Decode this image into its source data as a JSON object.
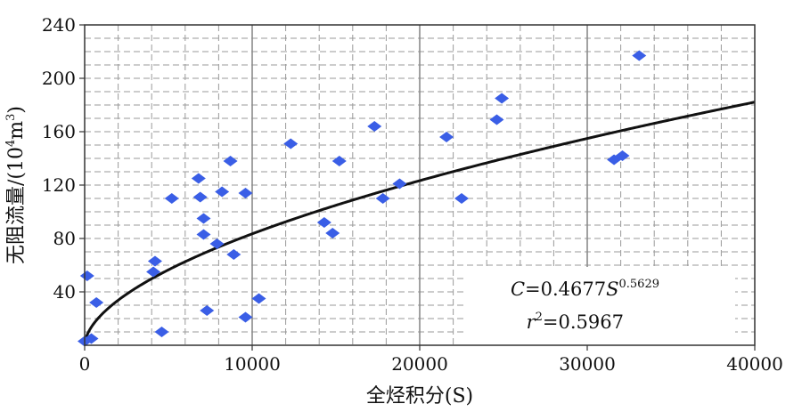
{
  "chart_data": {
    "type": "scatter",
    "xlabel": "全烃积分(S)",
    "ylabel_main": "无阻流量/(10",
    "ylabel_sup": "4",
    "ylabel_unit": "m",
    "ylabel_sup2": "3",
    "ylabel_close": ")",
    "xlim": [
      0,
      40000
    ],
    "ylim": [
      0,
      240
    ],
    "xticks": [
      0,
      10000,
      20000,
      30000,
      40000
    ],
    "yticks": [
      40,
      80,
      120,
      160,
      200,
      240
    ],
    "xtick_labels": [
      "0",
      "10000",
      "20000",
      "30000",
      "40000"
    ],
    "ytick_labels": [
      "40",
      "80",
      "120",
      "160",
      "200",
      "240"
    ],
    "grid": true,
    "marker_color": "#3a5ee6",
    "curve_color": "#111111",
    "points": [
      {
        "x": 0,
        "y": 3
      },
      {
        "x": 400,
        "y": 5
      },
      {
        "x": 150,
        "y": 52
      },
      {
        "x": 700,
        "y": 32
      },
      {
        "x": 4100,
        "y": 55
      },
      {
        "x": 4200,
        "y": 63
      },
      {
        "x": 4600,
        "y": 10
      },
      {
        "x": 5200,
        "y": 110
      },
      {
        "x": 6800,
        "y": 125
      },
      {
        "x": 6900,
        "y": 111
      },
      {
        "x": 7100,
        "y": 95
      },
      {
        "x": 7100,
        "y": 83
      },
      {
        "x": 7300,
        "y": 26
      },
      {
        "x": 7900,
        "y": 76
      },
      {
        "x": 8200,
        "y": 115
      },
      {
        "x": 8700,
        "y": 138
      },
      {
        "x": 8900,
        "y": 68
      },
      {
        "x": 9600,
        "y": 21
      },
      {
        "x": 9600,
        "y": 114
      },
      {
        "x": 10400,
        "y": 35
      },
      {
        "x": 12300,
        "y": 151
      },
      {
        "x": 14300,
        "y": 92
      },
      {
        "x": 14800,
        "y": 84
      },
      {
        "x": 15200,
        "y": 138
      },
      {
        "x": 17300,
        "y": 164
      },
      {
        "x": 17800,
        "y": 110
      },
      {
        "x": 18800,
        "y": 121
      },
      {
        "x": 21600,
        "y": 156
      },
      {
        "x": 22500,
        "y": 110
      },
      {
        "x": 24600,
        "y": 169
      },
      {
        "x": 24900,
        "y": 185
      },
      {
        "x": 31600,
        "y": 139
      },
      {
        "x": 32100,
        "y": 142
      },
      {
        "x": 33100,
        "y": 217
      }
    ],
    "fit": {
      "a": 0.4677,
      "b": 0.5629
    },
    "annotation": {
      "eq_prefix": "C",
      "eq_mid": "=0.4677",
      "eq_var": "S",
      "eq_exp": "0.5629",
      "r2_var": "r",
      "r2_exp": "2",
      "r2_value": "=0.5967"
    }
  }
}
